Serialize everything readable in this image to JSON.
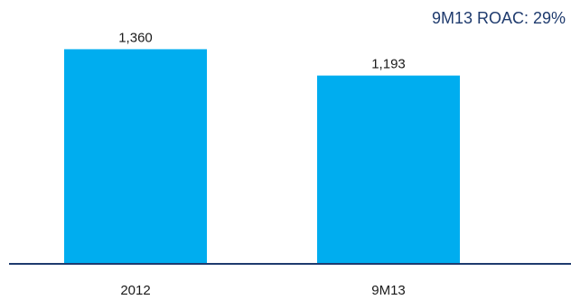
{
  "chart_data": {
    "type": "bar",
    "categories": [
      "2012",
      "9M13"
    ],
    "values": [
      1360,
      1193
    ],
    "data_labels": [
      "1,360",
      "1,193"
    ],
    "annotation": "9M13 ROAC: 29%",
    "title": "",
    "xlabel": "",
    "ylabel": "",
    "ylim": [
      0,
      1500
    ],
    "grid": false,
    "legend": "none"
  },
  "colors": {
    "bar": "#00adef",
    "axis": "#1f3b6e",
    "annotation_text": "#1f3b6e"
  }
}
